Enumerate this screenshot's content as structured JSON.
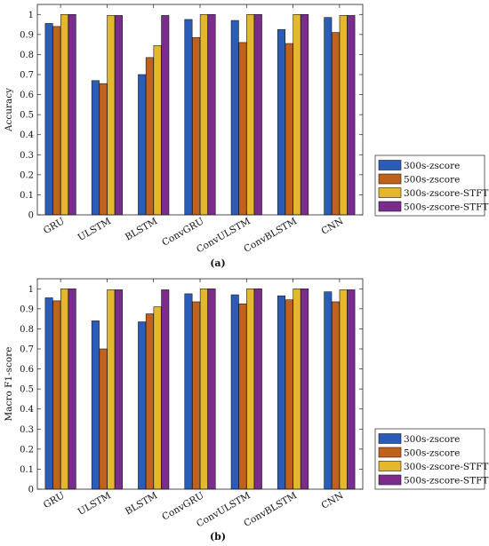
{
  "chart_data": [
    {
      "type": "bar",
      "panel_label": "(a)",
      "ylabel": "Accuracy",
      "ylim": [
        0,
        1.05
      ],
      "yticks": [
        "0",
        "0.1",
        "0.2",
        "0.3",
        "0.4",
        "0.5",
        "0.6",
        "0.7",
        "0.8",
        "0.9",
        "1"
      ],
      "categories": [
        "GRU",
        "ULSTM",
        "BLSTM",
        "ConvGRU",
        "ConvULSTM",
        "ConvBLSTM",
        "CNN"
      ],
      "grid": false,
      "legend_position": "right",
      "series": [
        {
          "name": "300s-zscore",
          "color": "#2b5cb8",
          "values": [
            0.955,
            0.67,
            0.7,
            0.975,
            0.97,
            0.925,
            0.985
          ]
        },
        {
          "name": "500s-zscore",
          "color": "#c0611e",
          "values": [
            0.94,
            0.655,
            0.785,
            0.885,
            0.86,
            0.855,
            0.91
          ]
        },
        {
          "name": "300s-zscore-STFT",
          "color": "#e4b82e",
          "values": [
            1.0,
            0.995,
            0.845,
            1.0,
            1.0,
            1.0,
            0.995
          ]
        },
        {
          "name": "500s-zscore-STFT",
          "color": "#7b2d8e",
          "values": [
            1.0,
            0.995,
            0.995,
            1.0,
            1.0,
            1.0,
            0.995
          ]
        }
      ]
    },
    {
      "type": "bar",
      "panel_label": "(b)",
      "ylabel": "Macro F1-score",
      "ylim": [
        0,
        1.05
      ],
      "yticks": [
        "0",
        "0.1",
        "0.2",
        "0.3",
        "0.4",
        "0.5",
        "0.6",
        "0.7",
        "0.8",
        "0.9",
        "1"
      ],
      "categories": [
        "GRU",
        "ULSTM",
        "BLSTM",
        "ConvGRU",
        "ConvULSTM",
        "ConvBLSTM",
        "CNN"
      ],
      "grid": false,
      "legend_position": "right",
      "series": [
        {
          "name": "300s-zscore",
          "color": "#2b5cb8",
          "values": [
            0.955,
            0.84,
            0.835,
            0.975,
            0.97,
            0.965,
            0.985
          ]
        },
        {
          "name": "500s-zscore",
          "color": "#c0611e",
          "values": [
            0.94,
            0.7,
            0.875,
            0.935,
            0.925,
            0.945,
            0.935
          ]
        },
        {
          "name": "300s-zscore-STFT",
          "color": "#e4b82e",
          "values": [
            1.0,
            0.995,
            0.91,
            1.0,
            1.0,
            1.0,
            0.995
          ]
        },
        {
          "name": "500s-zscore-STFT",
          "color": "#7b2d8e",
          "values": [
            1.0,
            0.995,
            0.995,
            1.0,
            1.0,
            1.0,
            0.995
          ]
        }
      ]
    }
  ]
}
